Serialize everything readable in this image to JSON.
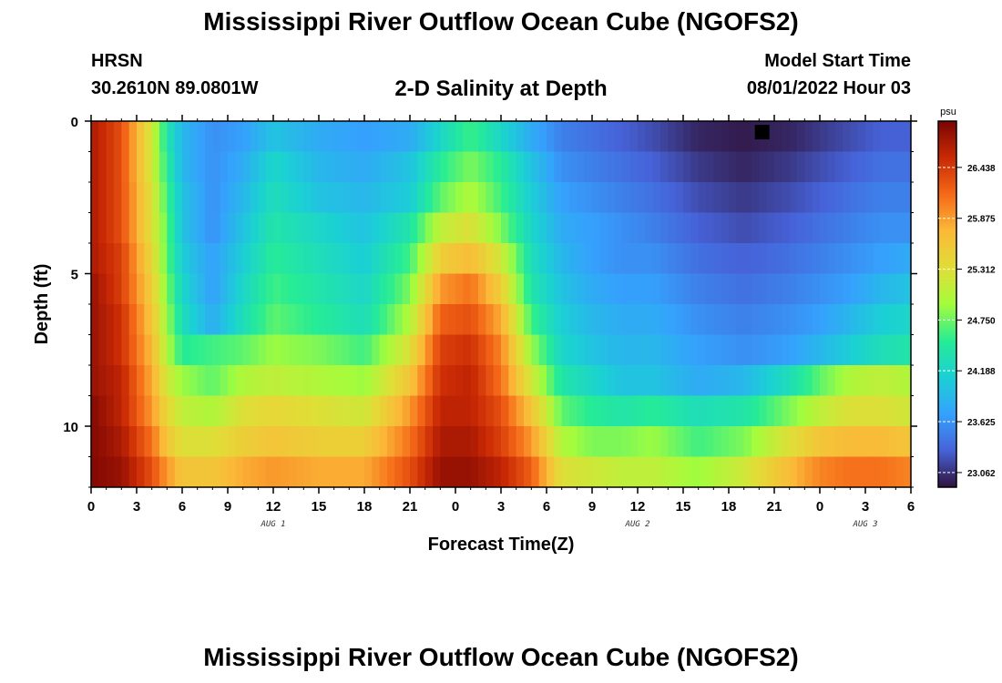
{
  "header": {
    "title": "Mississippi River Outflow Ocean Cube (NGOFS2)",
    "station_name": "HRSN",
    "station_coords": "30.2610N  89.0801W",
    "subtitle": "2-D Salinity at Depth",
    "model_start_label": "Model Start Time",
    "model_start_value": "08/01/2022 Hour 03"
  },
  "footer": {
    "title": "Mississippi River Outflow Ocean Cube (NGOFS2)"
  },
  "chart_data": {
    "type": "heatmap",
    "title": "2-D Salinity at Depth",
    "xlabel": "Forecast Time(Z)",
    "ylabel": "Depth (ft)",
    "x_hours_since_start": [
      0,
      54
    ],
    "x_tick_labels": [
      "0",
      "3",
      "6",
      "9",
      "12",
      "15",
      "18",
      "21",
      "0",
      "3",
      "6",
      "9",
      "12",
      "15",
      "18",
      "21",
      "0",
      "3",
      "6"
    ],
    "date_labels": [
      {
        "label": "AUG 1",
        "hour": 12
      },
      {
        "label": "AUG 2",
        "hour": 36
      },
      {
        "label": "AUG 3",
        "hour": 51
      }
    ],
    "y_ticks": [
      0,
      5,
      10
    ],
    "ylim": [
      12,
      0
    ],
    "colorbar": {
      "unit": "psu",
      "vmin": 22.9,
      "vmax": 26.95,
      "ticks": [
        "23.062",
        "23.625",
        "24.188",
        "24.750",
        "25.312",
        "25.875",
        "26.438"
      ]
    },
    "depth_levels_ft": [
      0.5,
      1.5,
      2.5,
      3.5,
      4.5,
      5.5,
      6.5,
      7.5,
      8.5,
      9.5,
      10.5,
      11.5
    ],
    "salinity_profiles": {
      "hours": [
        0,
        2,
        4,
        5,
        6,
        8,
        10,
        12,
        15,
        18,
        21,
        23,
        25,
        27,
        29,
        31,
        33,
        35,
        37,
        40,
        43,
        46,
        48,
        50,
        52,
        54
      ],
      "values_by_depth": [
        [
          26.7,
          26.3,
          25.2,
          24.4,
          23.9,
          23.6,
          23.7,
          24.0,
          23.8,
          23.7,
          23.8,
          24.2,
          24.6,
          24.2,
          23.8,
          23.5,
          23.4,
          23.3,
          23.2,
          23.0,
          22.95,
          23.0,
          23.1,
          23.2,
          23.3,
          23.3
        ],
        [
          26.7,
          26.3,
          25.2,
          24.5,
          23.9,
          23.6,
          23.8,
          24.2,
          23.9,
          23.8,
          24.0,
          24.5,
          24.8,
          24.5,
          24.0,
          23.6,
          23.5,
          23.4,
          23.3,
          23.1,
          23.0,
          23.1,
          23.2,
          23.3,
          23.4,
          23.4
        ],
        [
          26.7,
          26.3,
          25.3,
          24.6,
          24.0,
          23.6,
          23.9,
          24.3,
          24.0,
          23.9,
          24.1,
          24.7,
          25.0,
          24.6,
          24.1,
          23.7,
          23.6,
          23.5,
          23.4,
          23.2,
          23.1,
          23.2,
          23.3,
          23.4,
          23.5,
          23.5
        ],
        [
          26.7,
          26.3,
          25.3,
          24.7,
          24.0,
          23.6,
          24.0,
          24.4,
          24.2,
          24.0,
          24.4,
          25.1,
          25.3,
          24.8,
          24.2,
          23.8,
          23.7,
          23.6,
          23.5,
          23.3,
          23.2,
          23.3,
          23.4,
          23.5,
          23.6,
          23.6
        ],
        [
          26.7,
          26.4,
          25.4,
          24.7,
          24.1,
          23.7,
          24.1,
          24.5,
          24.3,
          24.1,
          24.6,
          25.5,
          25.7,
          25.2,
          24.3,
          23.9,
          23.7,
          23.6,
          23.6,
          23.4,
          23.3,
          23.4,
          23.5,
          23.6,
          23.7,
          23.8
        ],
        [
          26.8,
          26.4,
          25.5,
          24.8,
          24.2,
          23.7,
          24.2,
          24.6,
          24.4,
          24.2,
          24.8,
          25.9,
          26.1,
          25.5,
          24.4,
          24.0,
          23.8,
          23.7,
          23.7,
          23.5,
          23.4,
          23.5,
          23.6,
          23.7,
          23.9,
          24.0
        ],
        [
          26.8,
          26.5,
          25.6,
          24.9,
          24.3,
          23.8,
          24.3,
          24.7,
          24.5,
          24.3,
          25.0,
          26.2,
          26.3,
          25.8,
          24.6,
          24.1,
          23.9,
          23.8,
          23.8,
          23.6,
          23.5,
          23.6,
          23.7,
          23.9,
          24.1,
          24.2
        ],
        [
          26.8,
          26.5,
          25.7,
          25.0,
          24.5,
          24.6,
          24.7,
          24.9,
          24.8,
          24.6,
          25.3,
          26.4,
          26.5,
          26.0,
          24.9,
          24.2,
          24.0,
          23.9,
          23.9,
          23.7,
          23.6,
          23.7,
          23.9,
          24.1,
          24.3,
          24.4
        ],
        [
          26.8,
          26.6,
          25.8,
          25.2,
          24.9,
          24.7,
          25.0,
          25.1,
          25.0,
          24.9,
          25.6,
          26.5,
          26.6,
          26.1,
          25.2,
          24.4,
          24.2,
          24.0,
          24.0,
          23.8,
          23.9,
          24.3,
          24.7,
          25.0,
          25.1,
          25.0
        ],
        [
          26.9,
          26.6,
          25.9,
          25.4,
          25.1,
          25.0,
          25.3,
          25.4,
          25.3,
          25.2,
          25.9,
          26.6,
          26.6,
          26.3,
          25.6,
          24.7,
          24.5,
          24.4,
          24.5,
          24.3,
          24.4,
          24.8,
          25.1,
          25.3,
          25.3,
          25.2
        ],
        [
          26.9,
          26.7,
          26.1,
          25.6,
          25.3,
          25.3,
          25.5,
          25.6,
          25.5,
          25.5,
          26.1,
          26.7,
          26.7,
          26.4,
          25.9,
          25.0,
          24.8,
          24.8,
          24.9,
          24.6,
          24.8,
          25.3,
          25.6,
          25.7,
          25.7,
          25.6
        ],
        [
          26.9,
          26.8,
          26.3,
          25.9,
          25.6,
          25.6,
          25.8,
          25.9,
          25.8,
          25.8,
          26.3,
          26.8,
          26.8,
          26.6,
          26.2,
          25.3,
          25.2,
          25.1,
          25.1,
          24.9,
          25.2,
          25.7,
          26.0,
          26.1,
          26.1,
          26.0
        ]
      ]
    },
    "marker": {
      "hour": 44.2,
      "depth": 0.3,
      "color": "#000000"
    }
  }
}
